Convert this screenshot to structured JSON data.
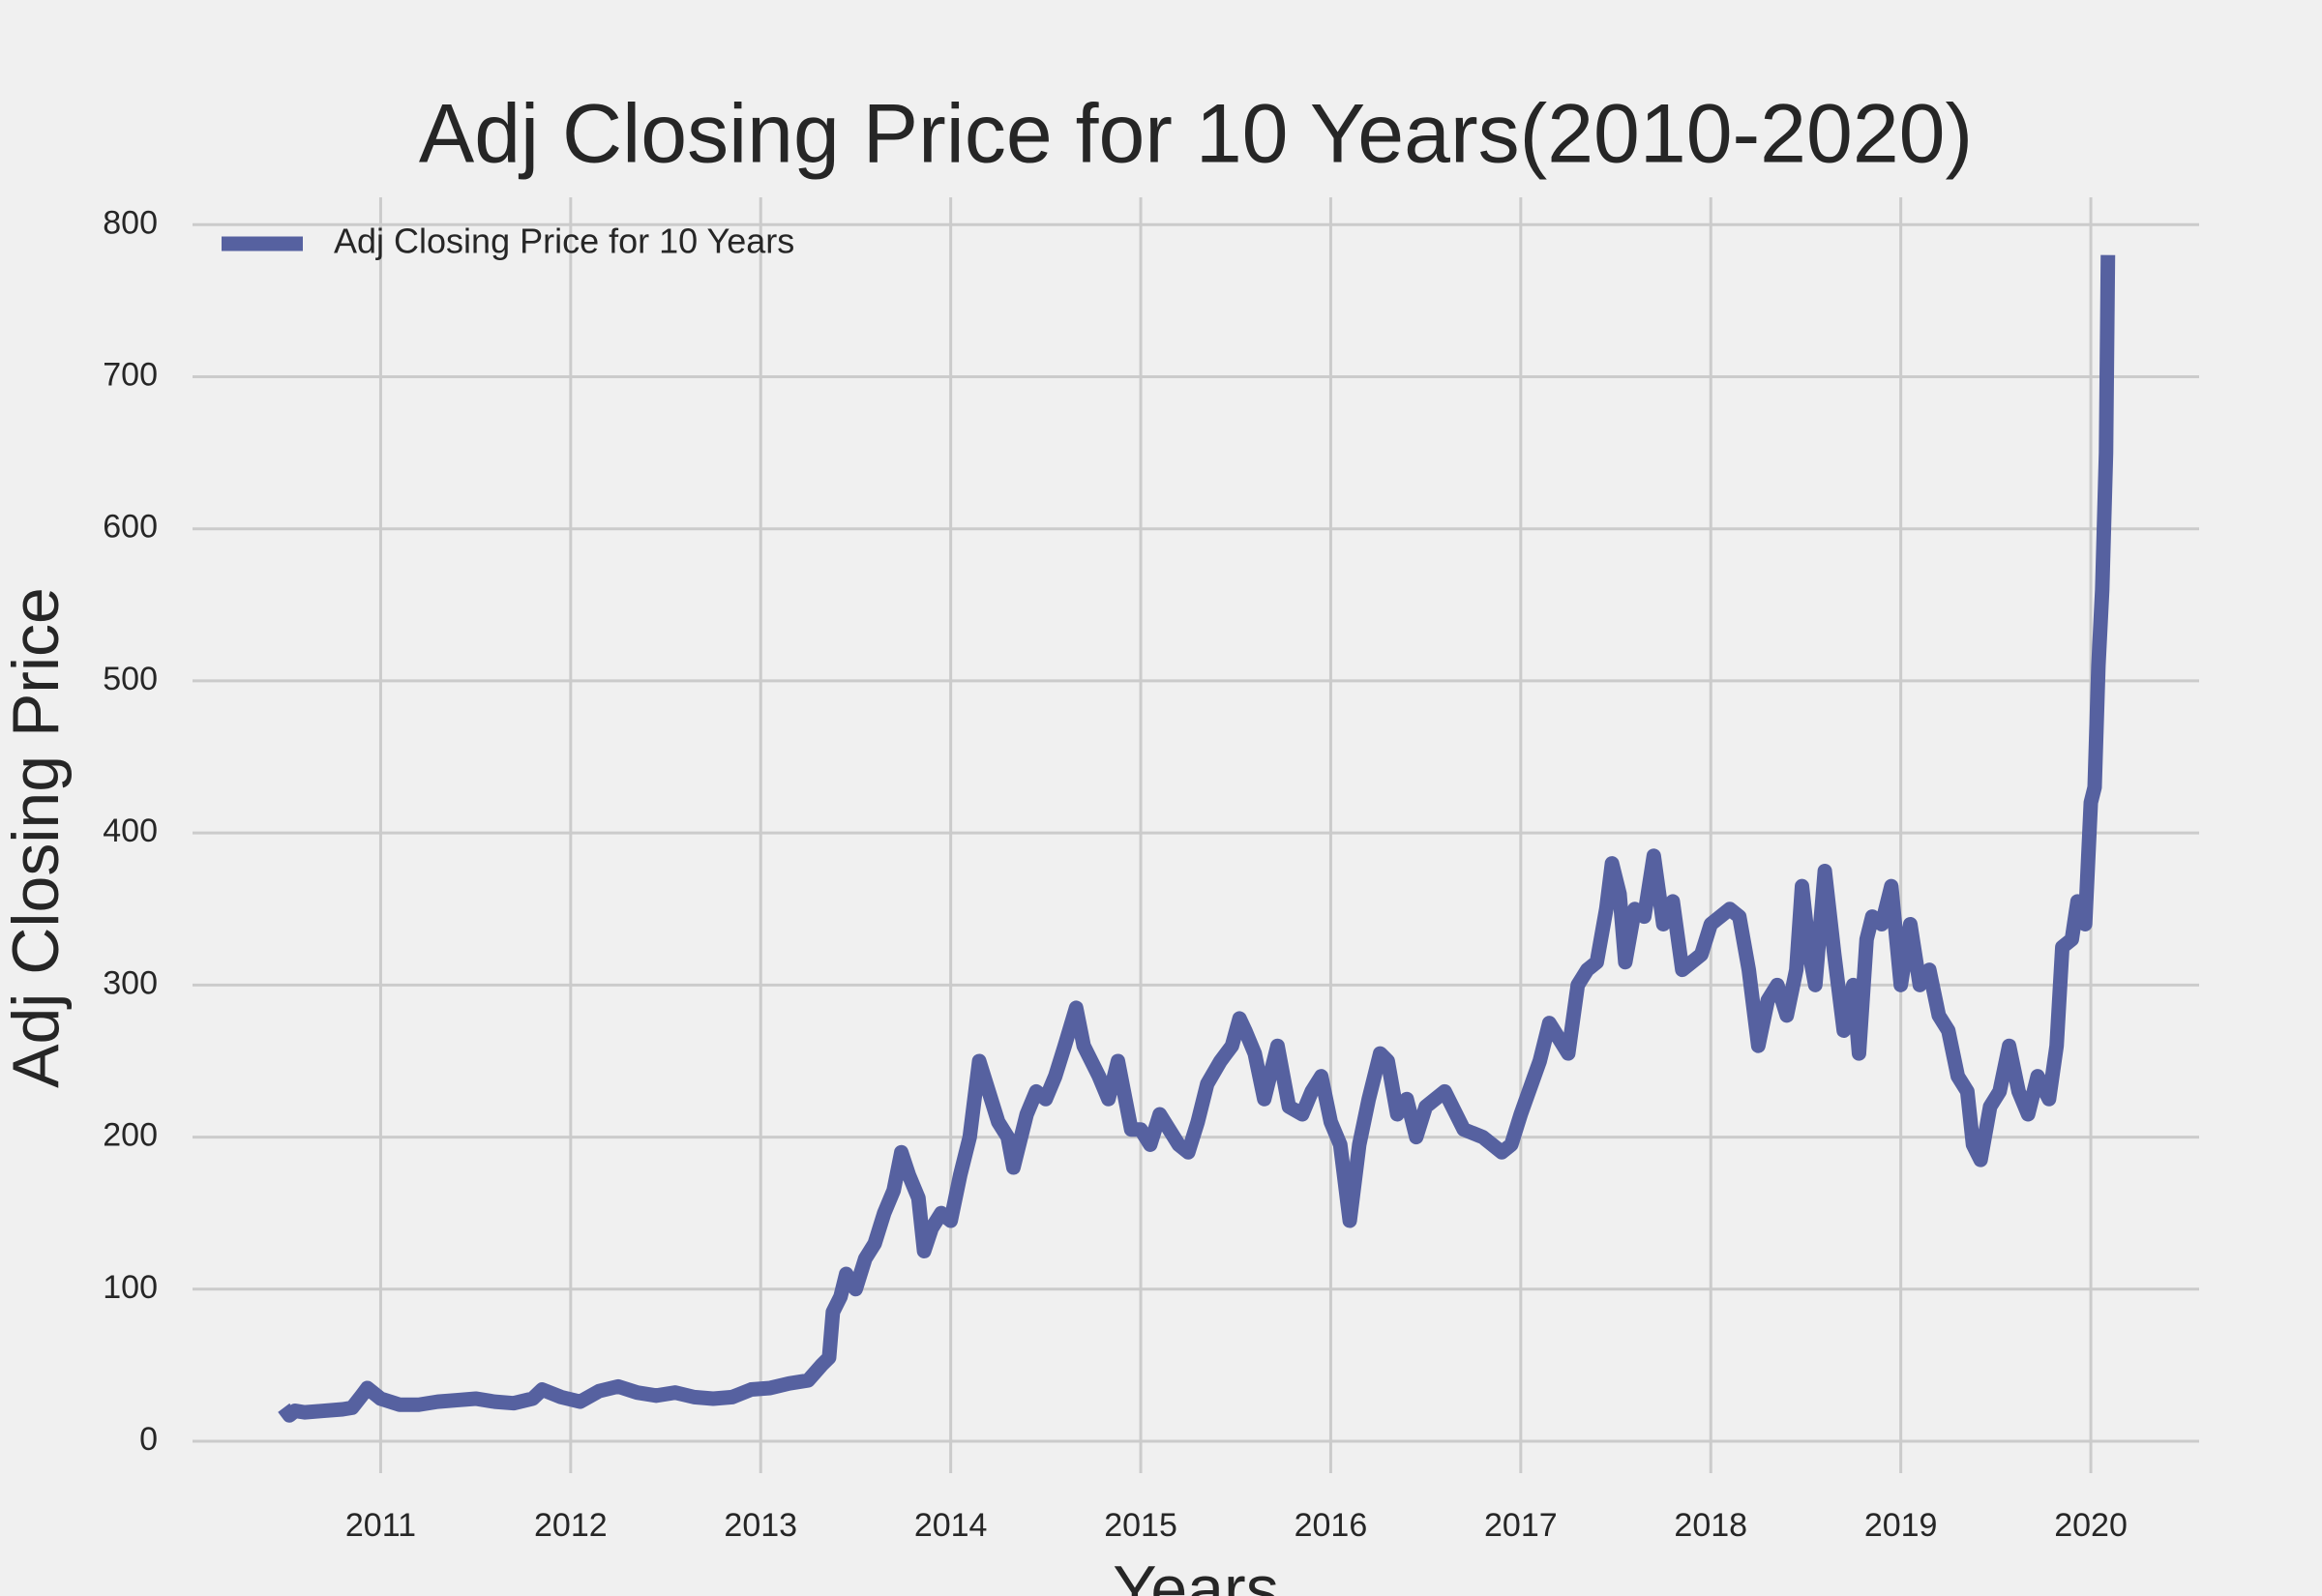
{
  "chart_data": {
    "type": "line",
    "title": "Adj Closing Price for 10 Years(2010-2020)",
    "x_label": "Years",
    "y_label": "Adj Closing Price",
    "x": [
      2010.49,
      2010.52,
      2010.55,
      2010.6,
      2010.7,
      2010.8,
      2010.85,
      2010.9,
      2010.93,
      2011.0,
      2011.1,
      2011.2,
      2011.3,
      2011.4,
      2011.5,
      2011.6,
      2011.7,
      2011.8,
      2011.85,
      2011.95,
      2012.05,
      2012.15,
      2012.25,
      2012.35,
      2012.45,
      2012.55,
      2012.65,
      2012.75,
      2012.85,
      2012.95,
      2013.05,
      2013.15,
      2013.25,
      2013.32,
      2013.36,
      2013.38,
      2013.42,
      2013.45,
      2013.5,
      2013.55,
      2013.6,
      2013.65,
      2013.7,
      2013.74,
      2013.78,
      2013.83,
      2013.86,
      2013.9,
      2013.95,
      2014.0,
      2014.05,
      2014.1,
      2014.15,
      2014.2,
      2014.25,
      2014.3,
      2014.33,
      2014.4,
      2014.45,
      2014.5,
      2014.55,
      2014.6,
      2014.66,
      2014.7,
      2014.78,
      2014.83,
      2014.88,
      2014.95,
      2015.0,
      2015.05,
      2015.1,
      2015.2,
      2015.25,
      2015.3,
      2015.35,
      2015.42,
      2015.48,
      2015.52,
      2015.55,
      2015.6,
      2015.65,
      2015.72,
      2015.78,
      2015.85,
      2015.9,
      2015.95,
      2016.0,
      2016.05,
      2016.1,
      2016.15,
      2016.2,
      2016.26,
      2016.3,
      2016.35,
      2016.4,
      2016.45,
      2016.5,
      2016.6,
      2016.7,
      2016.8,
      2016.9,
      2016.95,
      2017.0,
      2017.1,
      2017.15,
      2017.25,
      2017.3,
      2017.35,
      2017.4,
      2017.45,
      2017.48,
      2017.52,
      2017.55,
      2017.6,
      2017.65,
      2017.7,
      2017.75,
      2017.8,
      2017.85,
      2017.9,
      2017.95,
      2018.0,
      2018.05,
      2018.1,
      2018.15,
      2018.2,
      2018.25,
      2018.3,
      2018.35,
      2018.4,
      2018.45,
      2018.48,
      2018.52,
      2018.55,
      2018.6,
      2018.65,
      2018.7,
      2018.75,
      2018.78,
      2018.82,
      2018.85,
      2018.9,
      2018.95,
      2019.0,
      2019.05,
      2019.1,
      2019.15,
      2019.2,
      2019.25,
      2019.3,
      2019.35,
      2019.38,
      2019.42,
      2019.47,
      2019.52,
      2019.57,
      2019.62,
      2019.67,
      2019.72,
      2019.78,
      2019.82,
      2019.85,
      2019.9,
      2019.93,
      2019.97,
      2020.0,
      2020.02,
      2020.04,
      2020.06,
      2020.08,
      2020.09
    ],
    "series": [
      {
        "name": "Adj Closing Price for 10 Years",
        "color": "#5661a0",
        "values": [
          22,
          17,
          20,
          19,
          20,
          21,
          22,
          30,
          35,
          28,
          24,
          24,
          26,
          27,
          28,
          26,
          25,
          28,
          34,
          29,
          26,
          33,
          36,
          32,
          30,
          32,
          29,
          28,
          29,
          34,
          35,
          38,
          40,
          50,
          55,
          85,
          95,
          110,
          100,
          120,
          130,
          150,
          165,
          190,
          175,
          160,
          125,
          140,
          150,
          145,
          175,
          200,
          250,
          230,
          210,
          200,
          180,
          215,
          230,
          225,
          240,
          260,
          285,
          260,
          240,
          225,
          250,
          205,
          205,
          195,
          215,
          195,
          190,
          210,
          235,
          250,
          260,
          278,
          270,
          255,
          225,
          260,
          220,
          215,
          230,
          240,
          210,
          195,
          145,
          195,
          225,
          255,
          250,
          215,
          225,
          200,
          220,
          230,
          205,
          200,
          190,
          195,
          215,
          250,
          275,
          255,
          300,
          310,
          315,
          350,
          380,
          360,
          315,
          350,
          345,
          385,
          340,
          355,
          310,
          315,
          320,
          340,
          345,
          350,
          345,
          310,
          260,
          290,
          300,
          280,
          310,
          365,
          320,
          300,
          375,
          320,
          270,
          300,
          255,
          330,
          345,
          340,
          365,
          300,
          340,
          300,
          310,
          280,
          270,
          240,
          230,
          195,
          185,
          220,
          230,
          260,
          230,
          215,
          240,
          225,
          260,
          325,
          330,
          355,
          340,
          420,
          430,
          510,
          560,
          650,
          780
        ]
      }
    ],
    "xlim": [
      2010.01,
      2020.57
    ],
    "xticks": [
      2011,
      2012,
      2013,
      2014,
      2015,
      2016,
      2017,
      2018,
      2019,
      2020
    ],
    "ylim": [
      -21,
      818
    ],
    "yticks": [
      0,
      100,
      200,
      300,
      400,
      500,
      600,
      700,
      800
    ],
    "grid": true,
    "legend": "upper left"
  }
}
